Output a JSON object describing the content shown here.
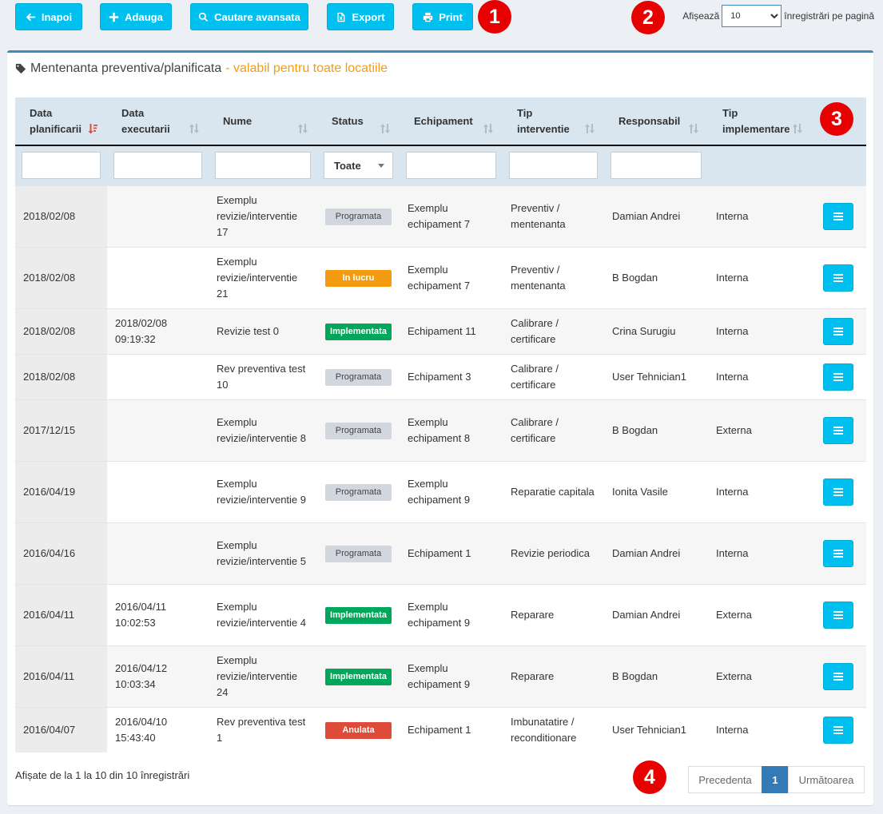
{
  "toolbar": {
    "back_label": "Inapoi",
    "add_label": "Adauga",
    "search_label": "Cautare avansata",
    "export_label": "Export",
    "print_label": "Print"
  },
  "callouts": [
    "1",
    "2",
    "3",
    "4"
  ],
  "per_page": {
    "prefix": "Afișează",
    "value": "10",
    "suffix": "înregistrări pe pagină"
  },
  "box": {
    "title": "Mentenanta preventiva/planificata",
    "subtitle": "- valabil pentru toate locatiile"
  },
  "columns": [
    "Data planificarii",
    "Data executarii",
    "Nume",
    "Status",
    "Echipament",
    "Tip interventie",
    "Responsabil",
    "Tip implementare"
  ],
  "filters": {
    "status_value": "Toate"
  },
  "rows": [
    {
      "planned": "2018/02/08",
      "executed": "",
      "name": "Exemplu revizie/interventie 17",
      "status": "Programata",
      "status_type": "programata",
      "equipment": "Exemplu echipament 7",
      "type": "Preventiv / mentenanta",
      "responsible": "Damian Andrei",
      "impl": "Interna"
    },
    {
      "planned": "2018/02/08",
      "executed": "",
      "name": "Exemplu revizie/interventie 21",
      "status": "In lucru",
      "status_type": "inlucru",
      "equipment": "Exemplu echipament 7",
      "type": "Preventiv / mentenanta",
      "responsible": "B Bogdan",
      "impl": "Interna"
    },
    {
      "planned": "2018/02/08",
      "executed": "2018/02/08 09:19:32",
      "name": "Revizie test 0",
      "status": "Implementata",
      "status_type": "implementata",
      "equipment": "Echipament 11",
      "type": "Calibrare / certificare",
      "responsible": "Crina Surugiu",
      "impl": "Interna"
    },
    {
      "planned": "2018/02/08",
      "executed": "",
      "name": "Rev preventiva test 10",
      "status": "Programata",
      "status_type": "programata",
      "equipment": "Echipament 3",
      "type": "Calibrare / certificare",
      "responsible": "User Tehnician1",
      "impl": "Interna"
    },
    {
      "planned": "2017/12/15",
      "executed": "",
      "name": "Exemplu revizie/interventie 8",
      "status": "Programata",
      "status_type": "programata",
      "equipment": "Exemplu echipament 8",
      "type": "Calibrare / certificare",
      "responsible": "B Bogdan",
      "impl": "Externa"
    },
    {
      "planned": "2016/04/19",
      "executed": "",
      "name": "Exemplu revizie/interventie 9",
      "status": "Programata",
      "status_type": "programata",
      "equipment": "Exemplu echipament 9",
      "type": "Reparatie capitala",
      "responsible": "Ionita Vasile",
      "impl": "Interna"
    },
    {
      "planned": "2016/04/16",
      "executed": "",
      "name": "Exemplu revizie/interventie 5",
      "status": "Programata",
      "status_type": "programata",
      "equipment": "Echipament 1",
      "type": "Revizie periodica",
      "responsible": "Damian Andrei",
      "impl": "Interna"
    },
    {
      "planned": "2016/04/11",
      "executed": "2016/04/11 10:02:53",
      "name": "Exemplu revizie/interventie 4",
      "status": "Implementata",
      "status_type": "implementata",
      "equipment": "Exemplu echipament 9",
      "type": "Reparare",
      "responsible": "Damian Andrei",
      "impl": "Externa"
    },
    {
      "planned": "2016/04/11",
      "executed": "2016/04/12 10:03:34",
      "name": "Exemplu revizie/interventie 24",
      "status": "Implementata",
      "status_type": "implementata",
      "equipment": "Exemplu echipament 9",
      "type": "Reparare",
      "responsible": "B Bogdan",
      "impl": "Externa"
    },
    {
      "planned": "2016/04/07",
      "executed": "2016/04/10 15:43:40",
      "name": "Rev preventiva test 1",
      "status": "Anulata",
      "status_type": "anulata",
      "equipment": "Echipament 1",
      "type": "Imbunatatire / reconditionare",
      "responsible": "User Tehnician1",
      "impl": "Interna"
    }
  ],
  "footer": {
    "info": "Afișate de la 1 la 10 din 10 înregistrări",
    "prev_label": "Precedenta",
    "page": "1",
    "next_label": "Următoarea"
  },
  "colors": {
    "accent": "#00c0ef",
    "primary": "#3c8dbc",
    "warning": "#f39c12",
    "success": "#00a65a",
    "danger": "#dd4b39",
    "callout": "#e60000"
  },
  "icons": {
    "back": "arrow-left-icon",
    "add": "plus-icon",
    "search": "search-icon",
    "export": "excel-file-icon",
    "print": "print-icon",
    "title": "tag-icon",
    "row_action": "bars-icon",
    "sort_active": "sort-amount-desc-icon",
    "sort": "sort-icon"
  }
}
